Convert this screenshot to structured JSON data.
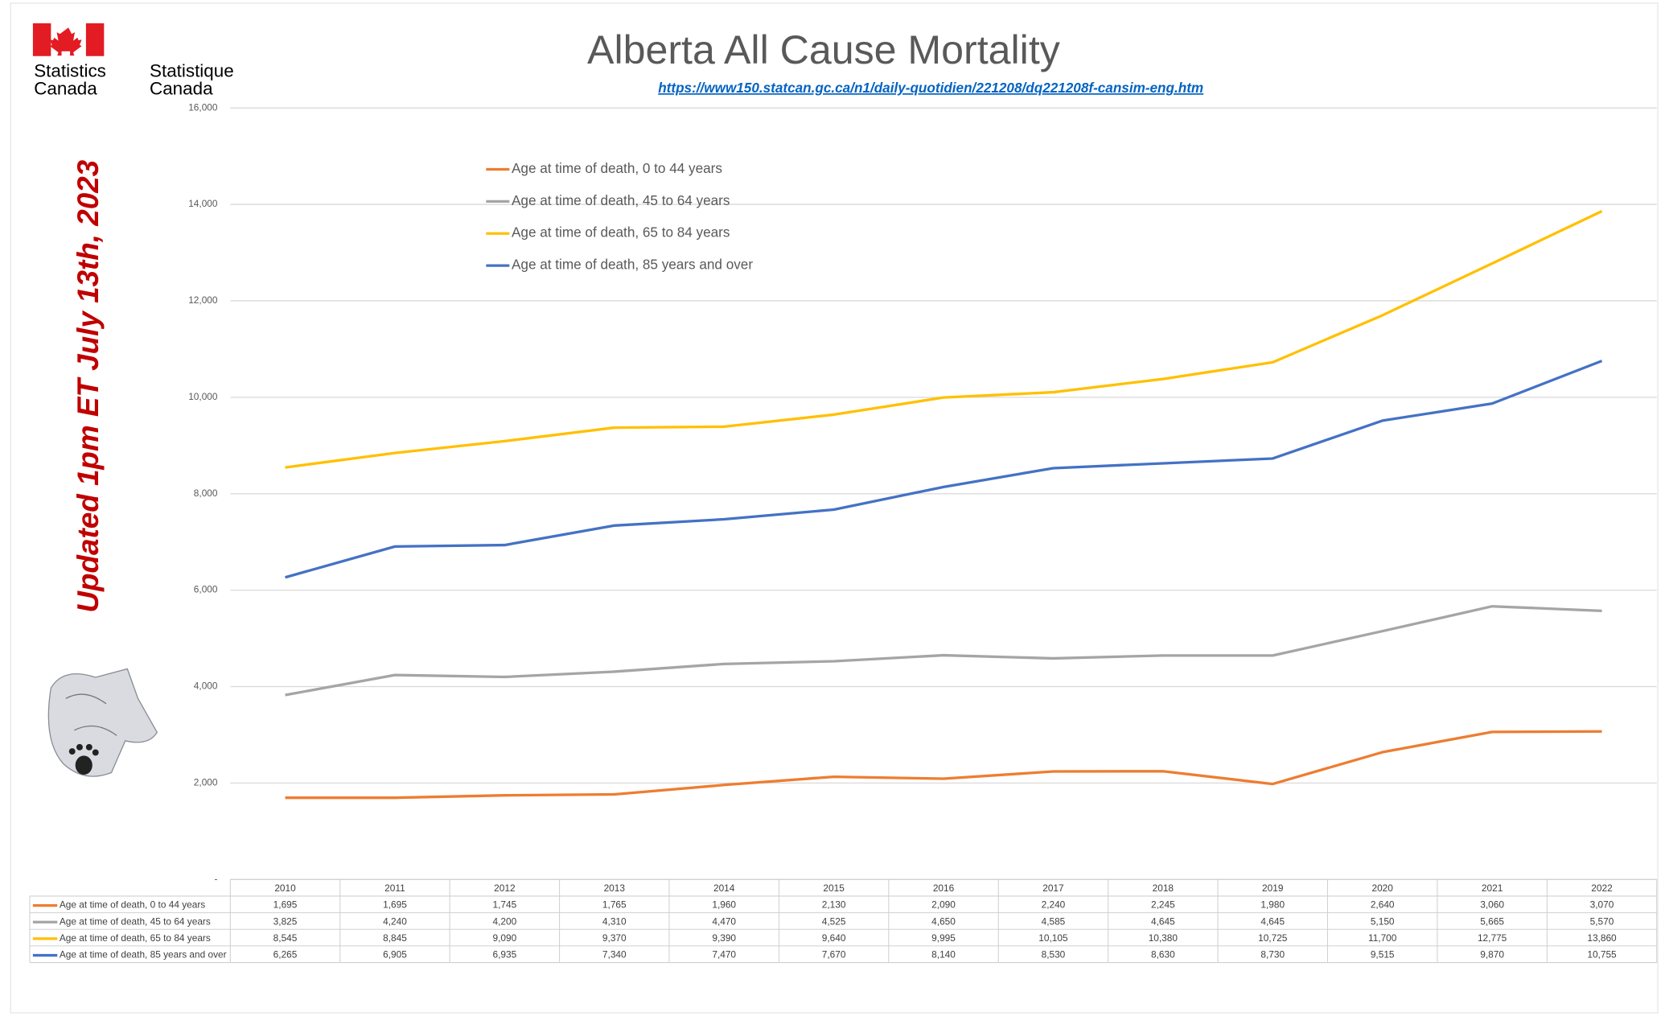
{
  "chart_data": {
    "type": "line",
    "title": "Alberta All Cause Mortality",
    "subtitle": "https://www150.statcan.gc.ca/n1/daily-quotidien/221208/dq221208f-cansim-eng.htm",
    "annotation": "Updated 1pm ET July 13th, 2023",
    "logo_text": [
      "Statistics",
      "Canada",
      "Statistique",
      "Canada"
    ],
    "categories": [
      "2010",
      "2011",
      "2012",
      "2013",
      "2014",
      "2015",
      "2016",
      "2017",
      "2018",
      "2019",
      "2020",
      "2021",
      "2022"
    ],
    "series": [
      {
        "name": "Age at time of death, 0 to 44 years",
        "color": "#ED7D31",
        "values": [
          1695,
          1695,
          1745,
          1765,
          1960,
          2130,
          2090,
          2240,
          2245,
          1980,
          2640,
          3060,
          3070
        ],
        "value_labels": [
          "1,695",
          "1,695",
          "1,745",
          "1,765",
          "1,960",
          "2,130",
          "2,090",
          "2,240",
          "2,245",
          "1,980",
          "2,640",
          "3,060",
          "3,070"
        ]
      },
      {
        "name": "Age at time of death, 45 to 64 years",
        "color": "#A5A5A5",
        "values": [
          3825,
          4240,
          4200,
          4310,
          4470,
          4525,
          4650,
          4585,
          4645,
          4645,
          5150,
          5665,
          5570
        ],
        "value_labels": [
          "3,825",
          "4,240",
          "4,200",
          "4,310",
          "4,470",
          "4,525",
          "4,650",
          "4,585",
          "4,645",
          "4,645",
          "5,150",
          "5,665",
          "5,570"
        ]
      },
      {
        "name": "Age at time of death, 65 to 84 years",
        "color": "#FFC000",
        "values": [
          8545,
          8845,
          9090,
          9370,
          9390,
          9640,
          9995,
          10105,
          10380,
          10725,
          11700,
          12775,
          13860
        ],
        "value_labels": [
          "8,545",
          "8,845",
          "9,090",
          "9,370",
          "9,390",
          "9,640",
          "9,995",
          "10,105",
          "10,380",
          "10,725",
          "11,700",
          "12,775",
          "13,860"
        ]
      },
      {
        "name": "Age at time of death, 85 years and over",
        "color": "#4472C4",
        "values": [
          6265,
          6905,
          6935,
          7340,
          7470,
          7670,
          8140,
          8530,
          8630,
          8730,
          9515,
          9870,
          10755
        ],
        "value_labels": [
          "6,265",
          "6,905",
          "6,935",
          "7,340",
          "7,470",
          "7,670",
          "8,140",
          "8,530",
          "8,630",
          "8,730",
          "9,515",
          "9,870",
          "10,755"
        ]
      }
    ],
    "ylim": [
      0,
      16000
    ],
    "yticks": [
      {
        "value": 0,
        "label": "-"
      },
      {
        "value": 2000,
        "label": "2,000"
      },
      {
        "value": 4000,
        "label": "4,000"
      },
      {
        "value": 6000,
        "label": "6,000"
      },
      {
        "value": 8000,
        "label": "8,000"
      },
      {
        "value": 10000,
        "label": "10,000"
      },
      {
        "value": 12000,
        "label": "12,000"
      },
      {
        "value": 14000,
        "label": "14,000"
      },
      {
        "value": 16000,
        "label": "16,000"
      }
    ],
    "grid": true,
    "legend": "top-left"
  }
}
